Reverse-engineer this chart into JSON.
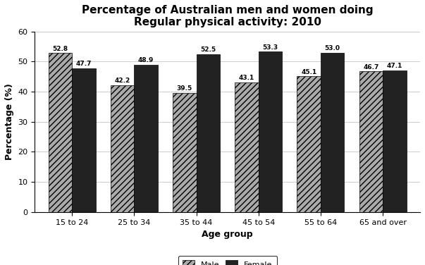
{
  "title_line1": "Percentage of Australian men and women doing",
  "title_line2": "Regular physical activity: 2010",
  "categories": [
    "15 to 24",
    "25 to 34",
    "35 to 44",
    "45 to 54",
    "55 to 64",
    "65 and over"
  ],
  "male_values": [
    52.8,
    42.2,
    39.5,
    43.1,
    45.1,
    46.7
  ],
  "female_values": [
    47.7,
    48.9,
    52.5,
    53.3,
    53.0,
    47.1
  ],
  "ylabel": "Percentage (%)",
  "xlabel": "Age group",
  "ylim": [
    0,
    60
  ],
  "yticks": [
    0,
    10,
    20,
    30,
    40,
    50,
    60
  ],
  "male_color": "#aaaaaa",
  "female_color": "#222222",
  "male_hatch": "////",
  "bar_width": 0.38,
  "title_fontsize": 11,
  "label_fontsize": 9,
  "tick_fontsize": 8,
  "value_fontsize": 6.5,
  "legend_labels": [
    "Male",
    "Female"
  ],
  "background_color": "#ffffff",
  "grid_color": "#cccccc"
}
